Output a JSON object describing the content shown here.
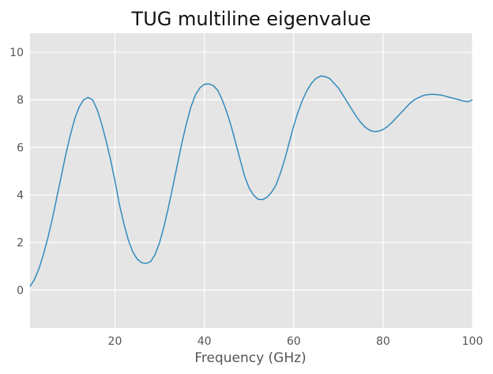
{
  "chart_data": {
    "type": "line",
    "title": "TUG multiline eigenvalue",
    "xlabel": "Frequency (GHz)",
    "ylabel": "",
    "xlim": [
      1,
      100
    ],
    "ylim": [
      -1.6,
      10.8
    ],
    "x_ticks": [
      20,
      40,
      60,
      80,
      100
    ],
    "x_tick_labels": [
      "20",
      "40",
      "60",
      "80",
      "100"
    ],
    "y_ticks": [
      0,
      2,
      4,
      6,
      8,
      10
    ],
    "y_tick_labels": [
      "0",
      "2",
      "4",
      "6",
      "8",
      "10"
    ],
    "grid": true,
    "style": "ggplot",
    "colors": {
      "plot_background": "#e5e5e5",
      "grid": "#ffffff",
      "line": "#348abd"
    },
    "series": [
      {
        "x": [
          1,
          2,
          3,
          4,
          5,
          6,
          7,
          8,
          9,
          10,
          11,
          12,
          13,
          14,
          15,
          16,
          17,
          18,
          19,
          20,
          21,
          22,
          23,
          24,
          25,
          26,
          27,
          28,
          29,
          30,
          31,
          32,
          33,
          34,
          35,
          36,
          37,
          38,
          39,
          40,
          41,
          42,
          43,
          44,
          45,
          46,
          47,
          48,
          49,
          50,
          51,
          52,
          53,
          54,
          55,
          56,
          57,
          58,
          59,
          60,
          61,
          62,
          63,
          64,
          65,
          66,
          67,
          68,
          69,
          70,
          71,
          72,
          73,
          74,
          75,
          76,
          77,
          78,
          79,
          80,
          81,
          82,
          83,
          84,
          85,
          86,
          87,
          88,
          89,
          90,
          91,
          92,
          93,
          94,
          95,
          96,
          97,
          98,
          99,
          100
        ],
        "y": [
          0.15,
          0.45,
          0.9,
          1.5,
          2.2,
          3.0,
          3.9,
          4.8,
          5.7,
          6.5,
          7.2,
          7.7,
          8.0,
          8.1,
          8.0,
          7.6,
          7.0,
          6.3,
          5.5,
          4.6,
          3.6,
          2.8,
          2.1,
          1.6,
          1.3,
          1.15,
          1.12,
          1.2,
          1.5,
          2.0,
          2.7,
          3.5,
          4.4,
          5.3,
          6.2,
          7.0,
          7.7,
          8.2,
          8.5,
          8.65,
          8.67,
          8.6,
          8.4,
          8.0,
          7.5,
          6.9,
          6.2,
          5.5,
          4.8,
          4.3,
          4.0,
          3.82,
          3.8,
          3.9,
          4.1,
          4.4,
          4.9,
          5.5,
          6.2,
          6.9,
          7.5,
          8.0,
          8.4,
          8.7,
          8.9,
          9.0,
          8.98,
          8.9,
          8.7,
          8.5,
          8.2,
          7.9,
          7.6,
          7.3,
          7.05,
          6.85,
          6.72,
          6.66,
          6.68,
          6.75,
          6.88,
          7.05,
          7.25,
          7.45,
          7.65,
          7.85,
          8.0,
          8.1,
          8.18,
          8.22,
          8.23,
          8.22,
          8.2,
          8.15,
          8.1,
          8.05,
          8.0,
          7.95,
          7.92,
          8.0
        ]
      }
    ]
  }
}
